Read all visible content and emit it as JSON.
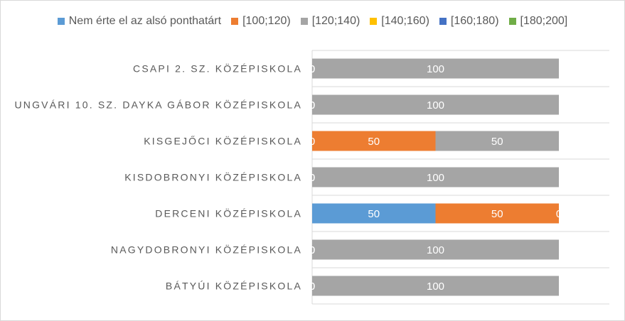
{
  "chart_data": {
    "type": "bar",
    "orientation": "horizontal",
    "stacked": true,
    "percent_stacked": true,
    "categories": [
      "CSAPI 2. SZ. KÖZÉPISKOLA",
      "UNGVÁRI 10. SZ. DAYKA GÁBOR KÖZÉPISKOLA",
      "KISGEJŐCI KÖZÉPISKOLA",
      "KISDOBRONYI KÖZÉPISKOLA",
      "DERCENI KÖZÉPISKOLA",
      "NAGYDOBRONYI KÖZÉPISKOLA",
      "BÁTYÚI KÖZÉPISKOLA"
    ],
    "series": [
      {
        "name": "Nem érte el az alsó ponthatárt",
        "color": "#5B9BD5",
        "values": [
          0,
          0,
          0,
          0,
          50,
          0,
          0
        ]
      },
      {
        "name": "[100;120)",
        "color": "#ED7D31",
        "values": [
          0,
          0,
          50,
          0,
          50,
          0,
          0
        ]
      },
      {
        "name": "[120;140)",
        "color": "#A5A5A5",
        "values": [
          100,
          100,
          50,
          100,
          0,
          100,
          100
        ]
      },
      {
        "name": "[140;160)",
        "color": "#FFC000",
        "values": [
          0,
          0,
          0,
          0,
          0,
          0,
          0
        ]
      },
      {
        "name": "[160;180)",
        "color": "#4472C4",
        "values": [
          0,
          0,
          0,
          0,
          0,
          0,
          0
        ]
      },
      {
        "name": "[180;200]",
        "color": "#70AD47",
        "values": [
          0,
          0,
          0,
          0,
          0,
          0,
          0
        ]
      }
    ],
    "xlim": [
      0,
      100
    ],
    "legend_position": "top",
    "grid": true,
    "data_labels": true
  }
}
